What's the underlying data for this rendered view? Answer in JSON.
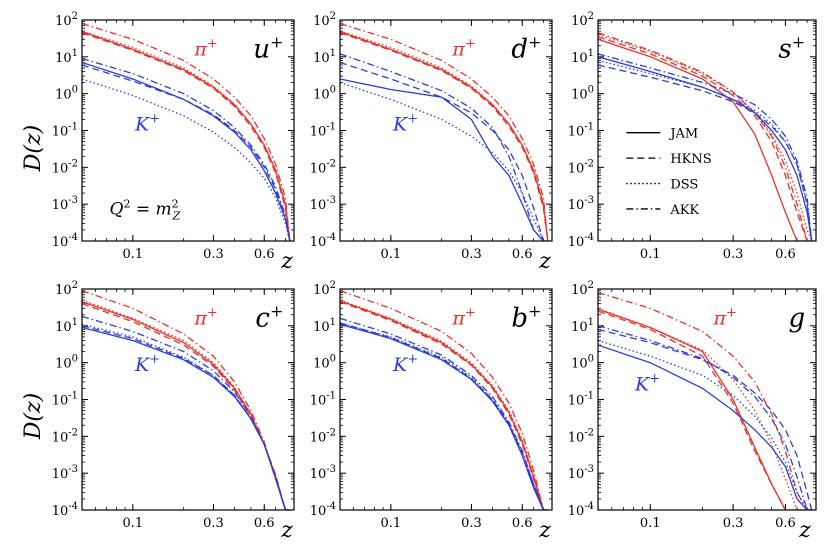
{
  "chart_data": {
    "type": "line",
    "title": "",
    "ylabel": "D(z)",
    "xlabel": "z",
    "xscale": "log",
    "yscale": "log",
    "xlim": [
      0.05,
      0.9
    ],
    "ylim": [
      0.0001,
      100
    ],
    "xticks": [
      {
        "value": 0.1,
        "label": "0.1"
      },
      {
        "value": 0.3,
        "label": "0.3"
      },
      {
        "value": 0.6,
        "label": "0.6"
      }
    ],
    "yticks": [
      {
        "value": 100,
        "base": "10",
        "exp": "2"
      },
      {
        "value": 10,
        "base": "10",
        "exp": "1"
      },
      {
        "value": 1,
        "base": "10",
        "exp": "0"
      },
      {
        "value": 0.1,
        "base": "10",
        "exp": "-1"
      },
      {
        "value": 0.01,
        "base": "10",
        "exp": "-2"
      },
      {
        "value": 0.001,
        "base": "10",
        "exp": "-3"
      },
      {
        "value": 0.0001,
        "base": "10",
        "exp": "-4"
      }
    ],
    "colors": {
      "pion": "#e8322b",
      "kaon": "#2b3fd9"
    },
    "hadron_labels": {
      "pion": {
        "base": "π",
        "sup": "+"
      },
      "kaon": {
        "base": "K",
        "sup": "+"
      }
    },
    "legend": [
      {
        "style": "solid",
        "label": "JAM"
      },
      {
        "style": "dashed",
        "label": "HKNS"
      },
      {
        "style": "dotted",
        "label": "DSS"
      },
      {
        "style": "dashdot",
        "label": "AKK"
      }
    ],
    "annotation": {
      "lhs": "Q",
      "lhs_sup": "2",
      "rhs": "m",
      "rhs_sub": "Z",
      "rhs_sup": "2"
    },
    "x": [
      0.05,
      0.1,
      0.2,
      0.3,
      0.4,
      0.5,
      0.6,
      0.7,
      0.8,
      0.85
    ],
    "panels": [
      {
        "label": {
          "base": "u",
          "sup": "+"
        },
        "series": [
          {
            "name": "JAM π+",
            "hadron": "pion",
            "style": "solid",
            "values": [
              48,
              16,
              4.5,
              1.5,
              0.5,
              0.15,
              0.04,
              0.008,
              0.001,
              0.0001
            ]
          },
          {
            "name": "HKNS π+",
            "hadron": "pion",
            "style": "dashed",
            "values": [
              45,
              15,
              4.2,
              1.4,
              0.45,
              0.13,
              0.035,
              0.007,
              0.0008,
              0.0001
            ]
          },
          {
            "name": "DSS π+",
            "hadron": "pion",
            "style": "dotted",
            "values": [
              50,
              18,
              5,
              1.6,
              0.52,
              0.15,
              0.04,
              0.009,
              0.001,
              0.0001
            ]
          },
          {
            "name": "AKK π+",
            "hadron": "pion",
            "style": "dashdot",
            "values": [
              80,
              30,
              8,
              2.5,
              0.8,
              0.25,
              0.06,
              0.012,
              0.0015,
              0.0001
            ]
          },
          {
            "name": "JAM K+",
            "hadron": "kaon",
            "style": "solid",
            "values": [
              7,
              2.5,
              0.7,
              0.25,
              0.09,
              0.03,
              0.008,
              0.002,
              0.0004,
              0.0001
            ]
          },
          {
            "name": "HKNS K+",
            "hadron": "kaon",
            "style": "dashed",
            "values": [
              6,
              2.2,
              0.7,
              0.27,
              0.1,
              0.035,
              0.01,
              0.0025,
              0.0004,
              0.0001
            ]
          },
          {
            "name": "DSS K+",
            "hadron": "kaon",
            "style": "dotted",
            "values": [
              2.5,
              0.9,
              0.25,
              0.09,
              0.035,
              0.013,
              0.005,
              0.0015,
              0.0003,
              0.0001
            ]
          },
          {
            "name": "AKK K+",
            "hadron": "kaon",
            "style": "dashdot",
            "values": [
              9,
              3.5,
              1,
              0.35,
              0.12,
              0.04,
              0.012,
              0.003,
              0.0005,
              0.0001
            ]
          }
        ]
      },
      {
        "label": {
          "base": "d",
          "sup": "+"
        },
        "series": [
          {
            "name": "JAM π+",
            "hadron": "pion",
            "style": "solid",
            "values": [
              48,
              16,
              4.5,
              1.5,
              0.5,
              0.15,
              0.04,
              0.008,
              0.001,
              0.0001
            ]
          },
          {
            "name": "HKNS π+",
            "hadron": "pion",
            "style": "dashed",
            "values": [
              45,
              15,
              4.2,
              1.4,
              0.45,
              0.13,
              0.035,
              0.007,
              0.0008,
              0.0001
            ]
          },
          {
            "name": "DSS π+",
            "hadron": "pion",
            "style": "dotted",
            "values": [
              50,
              18,
              5,
              1.6,
              0.52,
              0.15,
              0.04,
              0.009,
              0.001,
              0.0001
            ]
          },
          {
            "name": "AKK π+",
            "hadron": "pion",
            "style": "dashdot",
            "values": [
              80,
              30,
              8,
              2.5,
              0.8,
              0.25,
              0.06,
              0.012,
              0.0015,
              0.0001
            ]
          },
          {
            "name": "JAM K+",
            "hadron": "kaon",
            "style": "solid",
            "values": [
              2.5,
              1.3,
              0.8,
              0.2,
              0.02,
              0.006,
              0.001,
              0.0002,
              0.0001,
              0.0001
            ]
          },
          {
            "name": "HKNS K+",
            "hadron": "kaon",
            "style": "dashed",
            "values": [
              7,
              2.5,
              0.8,
              0.3,
              0.1,
              0.03,
              0.006,
              0.0008,
              0.0001,
              0.0001
            ]
          },
          {
            "name": "DSS K+",
            "hadron": "kaon",
            "style": "dotted",
            "values": [
              2,
              0.7,
              0.2,
              0.07,
              0.025,
              0.008,
              0.002,
              0.0004,
              0.0001,
              0.0001
            ]
          },
          {
            "name": "AKK K+",
            "hadron": "kaon",
            "style": "dashdot",
            "values": [
              12,
              4,
              1.2,
              0.4,
              0.12,
              0.02,
              0.002,
              0.0002,
              0.0001,
              0.0001
            ]
          }
        ]
      },
      {
        "label": {
          "base": "s",
          "sup": "+"
        },
        "series": [
          {
            "name": "JAM π+",
            "hadron": "pion",
            "style": "solid",
            "values": [
              30,
              10,
              2.5,
              0.6,
              0.08,
              0.006,
              0.0006,
              0.0001,
              0.0001,
              0.0001
            ]
          },
          {
            "name": "HKNS π+",
            "hadron": "pion",
            "style": "dashed",
            "values": [
              35,
              12,
              3,
              0.9,
              0.25,
              0.05,
              0.006,
              0.0006,
              0.0001,
              0.0001
            ]
          },
          {
            "name": "DSS π+",
            "hadron": "pion",
            "style": "dotted",
            "values": [
              40,
              14,
              3.5,
              1.1,
              0.3,
              0.08,
              0.015,
              0.002,
              0.0002,
              0.0001
            ]
          },
          {
            "name": "AKK π+",
            "hadron": "pion",
            "style": "dashdot",
            "values": [
              45,
              15,
              3.8,
              1.1,
              0.3,
              0.07,
              0.01,
              0.001,
              0.0001,
              0.0001
            ]
          },
          {
            "name": "JAM K+",
            "hadron": "kaon",
            "style": "solid",
            "values": [
              10,
              4,
              1.5,
              0.7,
              0.3,
              0.1,
              0.03,
              0.006,
              0.0006,
              0.0001
            ]
          },
          {
            "name": "HKNS K+",
            "hadron": "kaon",
            "style": "dashed",
            "values": [
              6,
              2.8,
              1.2,
              0.6,
              0.3,
              0.13,
              0.05,
              0.012,
              0.001,
              0.0001
            ]
          },
          {
            "name": "DSS K+",
            "hadron": "kaon",
            "style": "dotted",
            "values": [
              8,
              3.5,
              1.5,
              0.7,
              0.35,
              0.15,
              0.05,
              0.012,
              0.001,
              0.0001
            ]
          },
          {
            "name": "AKK K+",
            "hadron": "kaon",
            "style": "dashdot",
            "values": [
              12,
              5,
              2,
              1,
              0.5,
              0.2,
              0.07,
              0.015,
              0.0015,
              0.0001
            ]
          }
        ]
      },
      {
        "label": {
          "base": "c",
          "sup": "+"
        },
        "series": [
          {
            "name": "JAM π+",
            "hadron": "pion",
            "style": "solid",
            "values": [
              45,
              15,
              3.5,
              0.9,
              0.2,
              0.04,
              0.006,
              0.0007,
              0.0001,
              0.0001
            ]
          },
          {
            "name": "HKNS π+",
            "hadron": "pion",
            "style": "dashed",
            "values": [
              40,
              13,
              3,
              0.8,
              0.18,
              0.035,
              0.006,
              0.0008,
              0.0001,
              0.0001
            ]
          },
          {
            "name": "DSS π+",
            "hadron": "pion",
            "style": "dotted",
            "values": [
              50,
              16,
              4,
              1,
              0.22,
              0.04,
              0.006,
              0.0007,
              0.0001,
              0.0001
            ]
          },
          {
            "name": "AKK π+",
            "hadron": "pion",
            "style": "dashdot",
            "values": [
              90,
              30,
              6,
              1.5,
              0.3,
              0.05,
              0.007,
              0.0007,
              0.0001,
              0.0001
            ]
          },
          {
            "name": "JAM K+",
            "hadron": "kaon",
            "style": "solid",
            "values": [
              9,
              4,
              1.2,
              0.4,
              0.12,
              0.03,
              0.006,
              0.0008,
              0.0001,
              0.0001
            ]
          },
          {
            "name": "HKNS K+",
            "hadron": "kaon",
            "style": "dashed",
            "values": [
              10,
              4.5,
              1.3,
              0.45,
              0.13,
              0.03,
              0.006,
              0.0009,
              0.0001,
              0.0001
            ]
          },
          {
            "name": "DSS K+",
            "hadron": "kaon",
            "style": "dotted",
            "values": [
              11,
              5,
              1.4,
              0.45,
              0.13,
              0.03,
              0.006,
              0.0008,
              0.0001,
              0.0001
            ]
          },
          {
            "name": "AKK K+",
            "hadron": "kaon",
            "style": "dashdot",
            "values": [
              18,
              7,
              2,
              0.6,
              0.16,
              0.035,
              0.006,
              0.0008,
              0.0001,
              0.0001
            ]
          }
        ]
      },
      {
        "label": {
          "base": "b",
          "sup": "+"
        },
        "series": [
          {
            "name": "JAM π+",
            "hadron": "pion",
            "style": "solid",
            "values": [
              48,
              15,
              3.5,
              0.9,
              0.22,
              0.045,
              0.007,
              0.0008,
              0.0001,
              0.0001
            ]
          },
          {
            "name": "HKNS π+",
            "hadron": "pion",
            "style": "dashed",
            "values": [
              45,
              14,
              3.2,
              0.85,
              0.2,
              0.04,
              0.006,
              0.0007,
              0.0001,
              0.0001
            ]
          },
          {
            "name": "DSS π+",
            "hadron": "pion",
            "style": "dotted",
            "values": [
              50,
              16,
              3.8,
              1,
              0.24,
              0.05,
              0.008,
              0.0009,
              0.0001,
              0.0001
            ]
          },
          {
            "name": "AKK π+",
            "hadron": "pion",
            "style": "dashdot",
            "values": [
              90,
              30,
              7,
              1.8,
              0.4,
              0.08,
              0.012,
              0.0012,
              0.0001,
              0.0001
            ]
          },
          {
            "name": "JAM K+",
            "hadron": "kaon",
            "style": "solid",
            "values": [
              11,
              4.5,
              1.2,
              0.35,
              0.09,
              0.02,
              0.003,
              0.0004,
              0.0001,
              0.0001
            ]
          },
          {
            "name": "HKNS K+",
            "hadron": "kaon",
            "style": "dashed",
            "values": [
              12,
              4.8,
              1.3,
              0.37,
              0.1,
              0.022,
              0.0035,
              0.0005,
              0.0001,
              0.0001
            ]
          },
          {
            "name": "DSS K+",
            "hadron": "kaon",
            "style": "dotted",
            "values": [
              12,
              5,
              1.4,
              0.4,
              0.1,
              0.022,
              0.0035,
              0.0005,
              0.0001,
              0.0001
            ]
          },
          {
            "name": "AKK K+",
            "hadron": "kaon",
            "style": "dashdot",
            "values": [
              16,
              6,
              1.6,
              0.45,
              0.12,
              0.025,
              0.004,
              0.0005,
              0.0001,
              0.0001
            ]
          }
        ]
      },
      {
        "label": {
          "base": "g",
          "sup": ""
        },
        "series": [
          {
            "name": "JAM π+",
            "hadron": "pion",
            "style": "solid",
            "values": [
              28,
              9,
              2,
              0.1,
              0.005,
              0.0005,
              0.0001,
              0.0001,
              0.0001,
              0.0001
            ]
          },
          {
            "name": "HKNS π+",
            "hadron": "pion",
            "style": "dashed",
            "values": [
              25,
              8,
              1.5,
              0.08,
              0.004,
              0.0005,
              0.0001,
              0.0001,
              0.0001,
              0.0001
            ]
          },
          {
            "name": "DSS π+",
            "hadron": "pion",
            "style": "dotted",
            "values": [
              30,
              9,
              2.2,
              0.35,
              0.05,
              0.006,
              0.0007,
              0.0001,
              0.0001,
              0.0001
            ]
          },
          {
            "name": "AKK π+",
            "hadron": "pion",
            "style": "dashdot",
            "values": [
              80,
              30,
              7,
              1.5,
              0.3,
              0.04,
              0.004,
              0.0003,
              0.0001,
              0.0001
            ]
          },
          {
            "name": "JAM K+",
            "hadron": "kaon",
            "style": "solid",
            "values": [
              3,
              1,
              0.2,
              0.05,
              0.015,
              0.005,
              0.0015,
              0.0002,
              0.0001,
              0.0001
            ]
          },
          {
            "name": "HKNS K+",
            "hadron": "kaon",
            "style": "dashed",
            "values": [
              8,
              3.5,
              1.2,
              0.45,
              0.15,
              0.05,
              0.015,
              0.003,
              0.0003,
              0.0001
            ]
          },
          {
            "name": "DSS K+",
            "hadron": "kaon",
            "style": "dotted",
            "values": [
              4,
              1.5,
              0.45,
              0.13,
              0.035,
              0.009,
              0.002,
              0.0003,
              0.0001,
              0.0001
            ]
          },
          {
            "name": "AKK K+",
            "hadron": "kaon",
            "style": "dashdot",
            "values": [
              10,
              4,
              1.3,
              0.4,
              0.12,
              0.03,
              0.006,
              0.0008,
              0.0001,
              0.0001
            ]
          }
        ]
      }
    ]
  }
}
